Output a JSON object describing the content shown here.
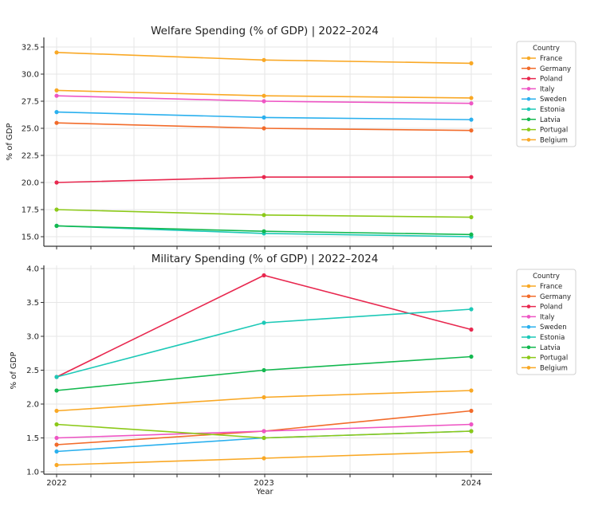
{
  "chart_data": [
    {
      "type": "line",
      "title": "Welfare Spending (% of GDP) | 2022–2024",
      "xlabel": "",
      "ylabel": "% of GDP",
      "x": [
        2022,
        2023,
        2024
      ],
      "ylim": [
        14.7,
        33
      ],
      "yticks": [
        "15.0",
        "17.5",
        "20.0",
        "22.5",
        "25.0",
        "27.5",
        "30.0",
        "32.5"
      ],
      "grid": true,
      "legend": {
        "title": "Country",
        "placement": "outside-right"
      },
      "series": [
        {
          "name": "France",
          "color": "#f9a825",
          "values": [
            32.0,
            31.3,
            31.0
          ]
        },
        {
          "name": "Germany",
          "color": "#f26b2a",
          "values": [
            25.5,
            25.0,
            24.8
          ]
        },
        {
          "name": "Poland",
          "color": "#e8284f",
          "values": [
            20.0,
            20.5,
            20.5
          ]
        },
        {
          "name": "Italy",
          "color": "#ee55c4",
          "values": [
            28.0,
            27.5,
            27.3
          ]
        },
        {
          "name": "Sweden",
          "color": "#2ab0ee",
          "values": [
            26.5,
            26.0,
            25.8
          ]
        },
        {
          "name": "Estonia",
          "color": "#1dc9b7",
          "values": [
            16.0,
            15.3,
            15.0
          ]
        },
        {
          "name": "Latvia",
          "color": "#13b84f",
          "values": [
            16.0,
            15.5,
            15.2
          ]
        },
        {
          "name": "Portugal",
          "color": "#8cc919",
          "values": [
            17.5,
            17.0,
            16.8
          ]
        },
        {
          "name": "Belgium",
          "color": "#f9a825",
          "values": [
            28.5,
            28.0,
            27.8
          ]
        }
      ]
    },
    {
      "type": "line",
      "title": "Military Spending (% of GDP) | 2022–2024",
      "xlabel": "Year",
      "ylabel": "% of GDP",
      "x": [
        2022,
        2023,
        2024
      ],
      "xticks": [
        "2022",
        "2023",
        "2024"
      ],
      "ylim": [
        0.96,
        4.05
      ],
      "yticks": [
        "1.0",
        "1.5",
        "2.0",
        "2.5",
        "3.0",
        "3.5",
        "4.0"
      ],
      "grid": true,
      "legend": {
        "title": "Country",
        "placement": "outside-right"
      },
      "series": [
        {
          "name": "France",
          "color": "#f9a825",
          "values": [
            1.9,
            2.1,
            2.2
          ]
        },
        {
          "name": "Germany",
          "color": "#f26b2a",
          "values": [
            1.4,
            1.6,
            1.9
          ]
        },
        {
          "name": "Poland",
          "color": "#e8284f",
          "values": [
            2.4,
            3.9,
            3.1
          ]
        },
        {
          "name": "Italy",
          "color": "#ee55c4",
          "values": [
            1.5,
            1.6,
            1.7
          ]
        },
        {
          "name": "Sweden",
          "color": "#2ab0ee",
          "values": [
            1.3,
            1.5,
            1.6
          ]
        },
        {
          "name": "Estonia",
          "color": "#1dc9b7",
          "values": [
            2.4,
            3.2,
            3.4
          ]
        },
        {
          "name": "Latvia",
          "color": "#13b84f",
          "values": [
            2.2,
            2.5,
            2.7
          ]
        },
        {
          "name": "Portugal",
          "color": "#8cc919",
          "values": [
            1.7,
            1.5,
            1.6
          ]
        },
        {
          "name": "Belgium",
          "color": "#f9a825",
          "values": [
            1.1,
            1.2,
            1.3
          ]
        }
      ]
    }
  ]
}
